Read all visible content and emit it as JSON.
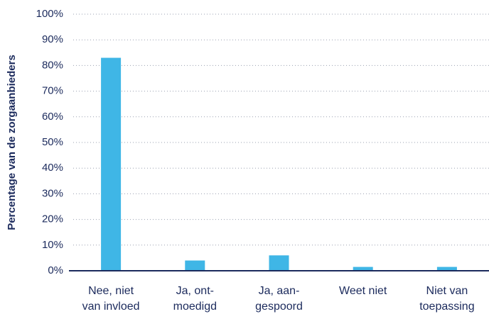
{
  "chart_data": {
    "type": "bar",
    "y_label": "Percentage van de zorgaanbieders",
    "categories": [
      [
        "Nee, niet",
        "van invloed"
      ],
      [
        "Ja, ont-",
        "moedigd"
      ],
      [
        "Ja, aan-",
        "gespoord"
      ],
      [
        "Weet niet"
      ],
      [
        "Niet van",
        "toepassing"
      ]
    ],
    "values": [
      83,
      4,
      6,
      1.5,
      1.5
    ],
    "color": "#3fb6e6",
    "ylim": [
      0,
      100
    ],
    "yticks": [
      {
        "value": 0,
        "label": "0%"
      },
      {
        "value": 10,
        "label": "10%"
      },
      {
        "value": 20,
        "label": "20%"
      },
      {
        "value": 30,
        "label": "30%"
      },
      {
        "value": 40,
        "label": "40%"
      },
      {
        "value": 50,
        "label": "50%"
      },
      {
        "value": 60,
        "label": "60%"
      },
      {
        "value": 70,
        "label": "70%"
      },
      {
        "value": 80,
        "label": "80%"
      },
      {
        "value": 90,
        "label": "90%"
      },
      {
        "value": 100,
        "label": "100%"
      }
    ],
    "grid": true
  }
}
